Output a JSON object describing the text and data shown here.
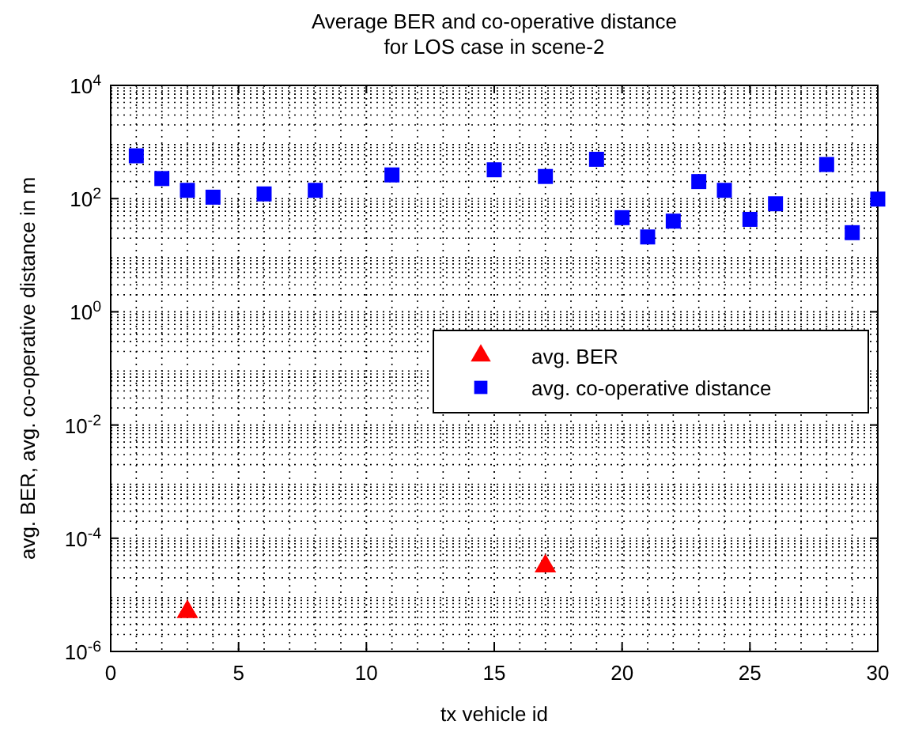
{
  "chart_data": {
    "type": "scatter",
    "title": "Average BER and co-operative distance\nfor LOS case in scene-2",
    "xlabel": "tx vehicle id",
    "ylabel": "avg. BER, avg. co-operative distance in m",
    "log": "y",
    "grid": true,
    "legend": "right",
    "xlim": [
      0,
      30
    ],
    "xticks": [
      0,
      5,
      10,
      15,
      20,
      25,
      30
    ],
    "ylim": [
      1e-06,
      10000
    ],
    "yticks": [
      {
        "value": 1e-06,
        "label": "10$^{-6}$"
      },
      {
        "value": 0.0001,
        "label": "10$^{-4}$"
      },
      {
        "value": 0.01,
        "label": "10$^{-2}$"
      },
      {
        "value": 1,
        "label": "10$^{0}$"
      },
      {
        "value": 100,
        "label": "10$^{2}$"
      },
      {
        "value": 10000,
        "label": "10$^{4}$"
      }
    ],
    "series": [
      {
        "name": "avg. BER",
        "color": "#ff0000",
        "marker": "triangle",
        "x": [
          3,
          17
        ],
        "values": [
          5e-06,
          3.2e-05
        ]
      },
      {
        "name": "avg. co-operative distance",
        "color": "#0000ff",
        "marker": "square",
        "x": [
          1,
          2,
          3,
          4,
          6,
          8,
          11,
          15,
          17,
          19,
          20,
          21,
          22,
          23,
          24,
          25,
          26,
          28,
          29,
          30
        ],
        "values": [
          570,
          226,
          140,
          106,
          121,
          140,
          262,
          323,
          246,
          495,
          46,
          21,
          40,
          200,
          140,
          43,
          81,
          400,
          25,
          98
        ]
      }
    ]
  }
}
